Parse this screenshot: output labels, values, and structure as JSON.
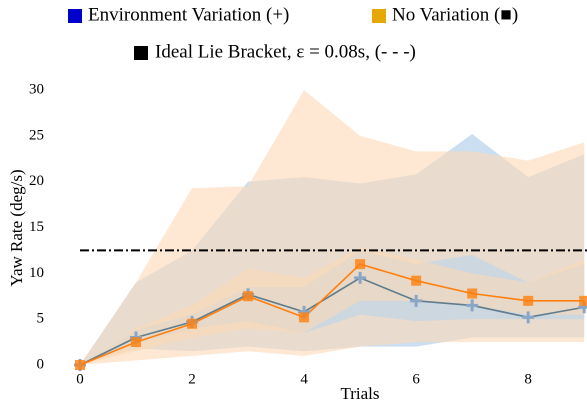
{
  "chart_data": {
    "type": "line",
    "x_label": "Trials",
    "y_label": "Yaw Rate (deg/s)",
    "x": [
      0,
      1,
      2,
      3,
      4,
      5,
      6,
      7,
      8,
      9
    ],
    "xlim": [
      0,
      9.05
    ],
    "xticks": [
      0,
      2,
      4,
      6,
      8
    ],
    "ylim": [
      0,
      30
    ],
    "yticks": [
      0,
      5,
      10,
      15,
      20,
      25,
      30
    ],
    "series": [
      {
        "name": "Environment Variation (+)",
        "color": "#0000cc",
        "line_color": "#5f7d8e",
        "band_color": "#b9d4ec",
        "marker": "plus",
        "values": [
          0,
          3.0,
          4.7,
          7.7,
          5.8,
          9.5,
          7.0,
          6.5,
          5.2,
          6.3
        ],
        "lower": [
          0,
          1.8,
          1.5,
          2.0,
          1.5,
          2.0,
          2.0,
          3.0,
          3.0,
          3.0
        ],
        "upper": [
          0,
          9.0,
          12.5,
          20.0,
          20.5,
          19.8,
          20.8,
          25.2,
          20.5,
          23.0
        ],
        "lower_inner": [
          0,
          2.3,
          4.0,
          4.8,
          3.5,
          5.5,
          4.8,
          5.0,
          5.0,
          5.0
        ],
        "upper_inner": [
          0,
          3.8,
          5.5,
          8.5,
          8.5,
          12.5,
          11.0,
          12.0,
          9.0,
          11.0
        ]
      },
      {
        "name": "No Variation (■)",
        "color": "#e6a800",
        "line_color": "#ff7f0e",
        "band_color": "#fdd9b5",
        "marker": "square",
        "values": [
          0,
          2.5,
          4.5,
          7.5,
          5.2,
          11.0,
          9.2,
          7.8,
          7.0,
          7.0
        ],
        "lower": [
          0,
          0.5,
          1.0,
          1.5,
          1.0,
          2.0,
          2.5,
          2.5,
          2.5,
          2.5
        ],
        "upper": [
          0,
          9.0,
          19.3,
          19.5,
          30,
          25.0,
          23.3,
          23.3,
          22.3,
          24.3
        ],
        "lower_inner": [
          0,
          1.5,
          3.0,
          4.0,
          3.5,
          7.0,
          7.0,
          6.5,
          5.5,
          5.5
        ],
        "upper_inner": [
          0,
          4.0,
          6.5,
          10.5,
          9.5,
          12.8,
          11.5,
          10.0,
          9.0,
          11.5
        ]
      }
    ],
    "reference": {
      "name": "Ideal Lie Bracket, ε = 0.08s, (- - -)",
      "value": 12.5,
      "color": "#000000"
    }
  }
}
